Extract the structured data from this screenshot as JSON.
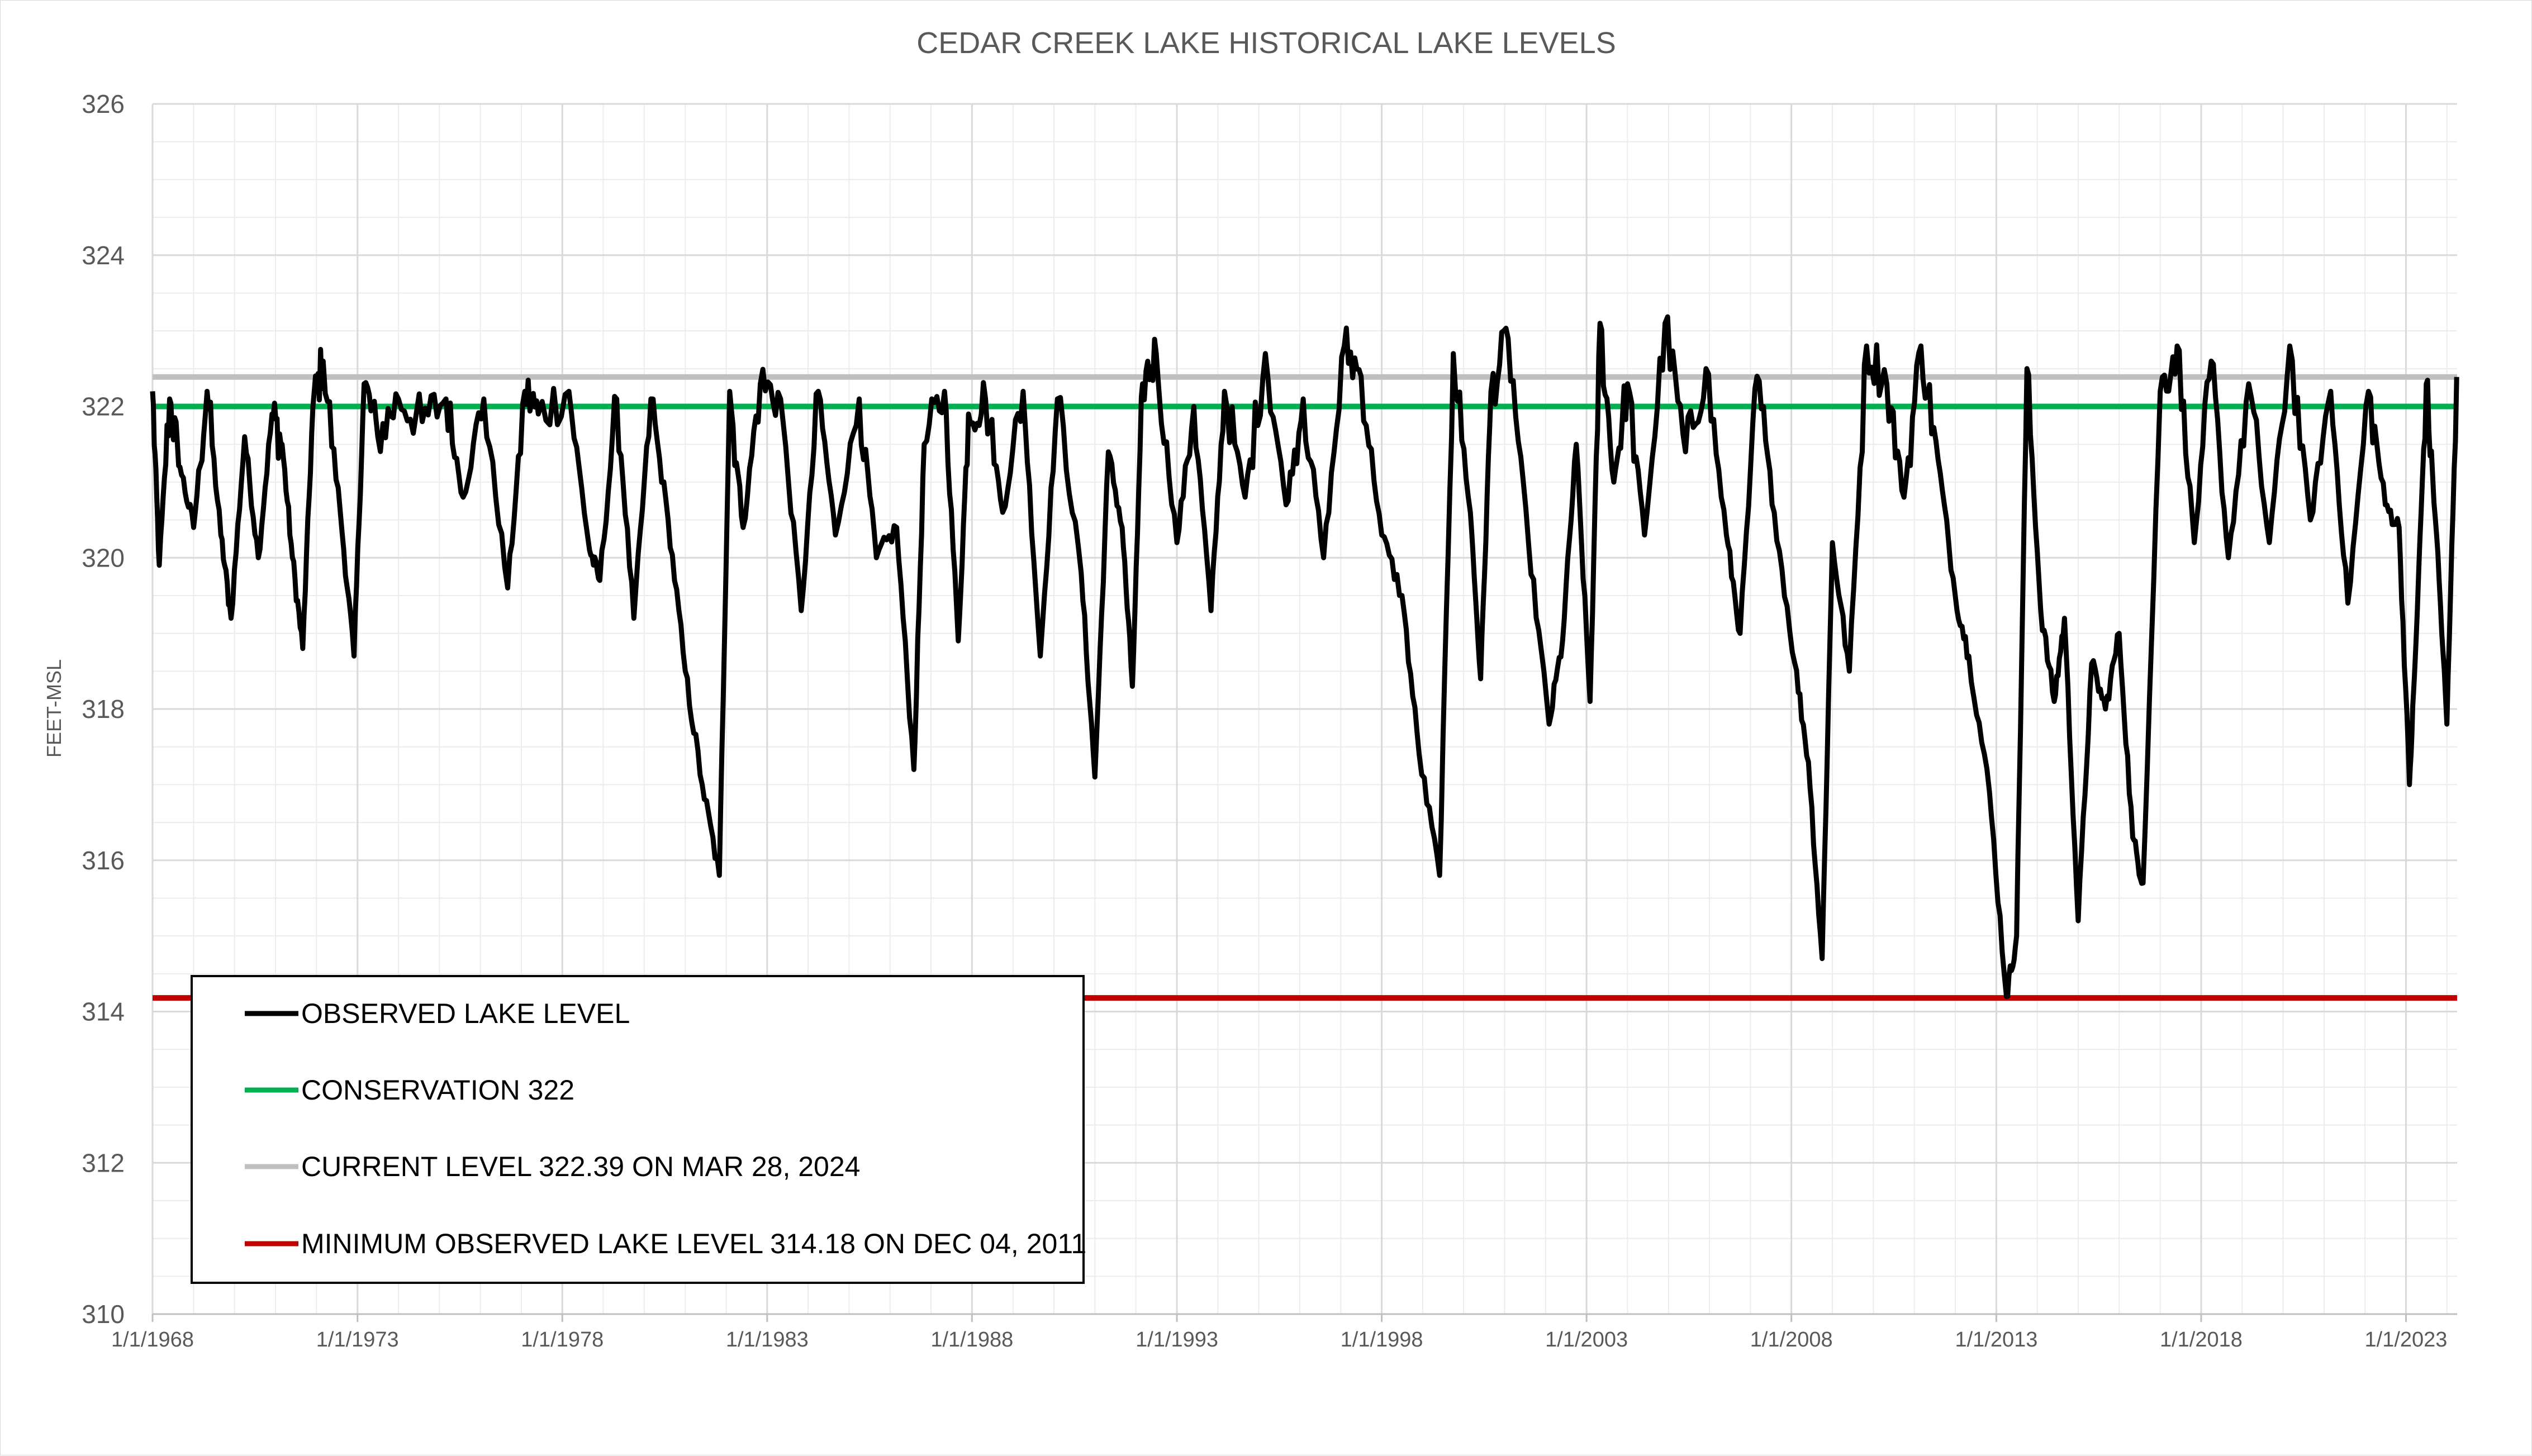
{
  "chart_data": {
    "type": "line",
    "title": "CEDAR CREEK LAKE HISTORICAL LAKE LEVELS",
    "ylabel": "FEET-MSL",
    "xlabel": "",
    "ylim": [
      310,
      326
    ],
    "yticks": [
      310,
      312,
      314,
      316,
      318,
      320,
      322,
      324,
      326
    ],
    "xlim": [
      "1968-01-01",
      "2024-04-01"
    ],
    "xtick_labels": [
      "1/1/1968",
      "1/1/1973",
      "1/1/1978",
      "1/1/1983",
      "1/1/1988",
      "1/1/1993",
      "1/1/1998",
      "1/1/2003",
      "1/1/2008",
      "1/1/2013",
      "1/1/2018",
      "1/1/2023"
    ],
    "xticks": [
      "1968-01-01",
      "1973-01-01",
      "1978-01-01",
      "1983-01-01",
      "1988-01-01",
      "1993-01-01",
      "1998-01-01",
      "2003-01-01",
      "2008-01-01",
      "2013-01-01",
      "2018-01-01",
      "2023-01-01"
    ],
    "grid": true,
    "legend_position": "bottom-left",
    "series": [
      {
        "name": "OBSERVED LAKE LEVEL",
        "color": "#000000",
        "points": [
          [
            "1968-01-01",
            322.2
          ],
          [
            "1968-03-01",
            319.9
          ],
          [
            "1968-06-01",
            322.1
          ],
          [
            "1968-09-01",
            321.2
          ],
          [
            "1969-01-01",
            320.4
          ],
          [
            "1969-05-01",
            322.2
          ],
          [
            "1969-09-01",
            320.3
          ],
          [
            "1969-12-01",
            319.2
          ],
          [
            "1970-04-01",
            321.6
          ],
          [
            "1970-08-01",
            320.0
          ],
          [
            "1970-12-01",
            321.9
          ],
          [
            "1971-03-01",
            321.5
          ],
          [
            "1971-06-01",
            320.0
          ],
          [
            "1971-09-01",
            318.8
          ],
          [
            "1971-12-01",
            322.0
          ],
          [
            "1972-03-01",
            322.6
          ],
          [
            "1972-08-01",
            320.6
          ],
          [
            "1972-12-01",
            318.7
          ],
          [
            "1973-03-01",
            322.3
          ],
          [
            "1973-07-01",
            321.6
          ],
          [
            "1974-01-01",
            322.1
          ],
          [
            "1974-08-01",
            321.8
          ],
          [
            "1975-03-01",
            322.1
          ],
          [
            "1975-08-01",
            320.8
          ],
          [
            "1976-02-01",
            322.1
          ],
          [
            "1976-09-01",
            319.6
          ],
          [
            "1977-02-01",
            322.2
          ],
          [
            "1977-06-01",
            321.9
          ],
          [
            "1978-03-01",
            322.2
          ],
          [
            "1978-09-01",
            320.1
          ],
          [
            "1978-12-01",
            319.7
          ],
          [
            "1979-05-01",
            322.1
          ],
          [
            "1979-10-01",
            319.2
          ],
          [
            "1980-03-01",
            322.1
          ],
          [
            "1980-08-01",
            320.5
          ],
          [
            "1981-01-01",
            318.5
          ],
          [
            "1981-06-01",
            317.0
          ],
          [
            "1981-11-01",
            315.8
          ],
          [
            "1982-02-01",
            322.2
          ],
          [
            "1982-06-01",
            320.4
          ],
          [
            "1982-11-01",
            322.3
          ],
          [
            "1983-05-01",
            322.1
          ],
          [
            "1983-11-01",
            319.3
          ],
          [
            "1984-04-01",
            322.2
          ],
          [
            "1984-09-01",
            320.3
          ],
          [
            "1985-04-01",
            322.1
          ],
          [
            "1985-09-01",
            320.0
          ],
          [
            "1986-03-01",
            320.4
          ],
          [
            "1986-08-01",
            317.2
          ],
          [
            "1986-11-01",
            321.5
          ],
          [
            "1987-05-01",
            322.2
          ],
          [
            "1987-09-01",
            318.9
          ],
          [
            "1987-12-01",
            321.9
          ],
          [
            "1988-05-01",
            322.1
          ],
          [
            "1988-10-01",
            320.6
          ],
          [
            "1989-04-01",
            322.2
          ],
          [
            "1989-09-01",
            318.7
          ],
          [
            "1990-02-01",
            322.1
          ],
          [
            "1990-09-01",
            319.8
          ],
          [
            "1991-01-01",
            317.1
          ],
          [
            "1991-05-01",
            321.4
          ],
          [
            "1991-09-01",
            320.4
          ],
          [
            "1991-12-01",
            318.3
          ],
          [
            "1992-03-01",
            322.3
          ],
          [
            "1992-07-01",
            322.7
          ],
          [
            "1993-01-01",
            320.2
          ],
          [
            "1993-06-01",
            322.0
          ],
          [
            "1993-11-01",
            319.3
          ],
          [
            "1994-03-01",
            322.2
          ],
          [
            "1994-09-01",
            320.8
          ],
          [
            "1995-03-01",
            322.7
          ],
          [
            "1995-09-01",
            320.7
          ],
          [
            "1996-02-01",
            322.1
          ],
          [
            "1996-08-01",
            320.0
          ],
          [
            "1997-02-01",
            322.8
          ],
          [
            "1997-07-01",
            322.4
          ],
          [
            "1998-01-01",
            320.3
          ],
          [
            "1998-07-01",
            319.5
          ],
          [
            "1998-12-01",
            317.4
          ],
          [
            "1999-06-01",
            315.8
          ],
          [
            "1999-10-01",
            322.7
          ],
          [
            "2000-03-01",
            320.6
          ],
          [
            "2000-06-01",
            318.4
          ],
          [
            "2000-09-01",
            322.2
          ],
          [
            "2001-02-01",
            322.9
          ],
          [
            "2001-08-01",
            320.2
          ],
          [
            "2002-02-01",
            317.8
          ],
          [
            "2002-06-01",
            318.9
          ],
          [
            "2002-10-01",
            321.5
          ],
          [
            "2003-02-01",
            318.1
          ],
          [
            "2003-05-01",
            323.1
          ],
          [
            "2003-09-01",
            321.0
          ],
          [
            "2004-01-01",
            322.3
          ],
          [
            "2004-06-01",
            320.3
          ],
          [
            "2004-12-01",
            323.1
          ],
          [
            "2005-06-01",
            321.4
          ],
          [
            "2005-12-01",
            322.5
          ],
          [
            "2006-06-01",
            320.3
          ],
          [
            "2006-10-01",
            319.0
          ],
          [
            "2007-03-01",
            322.4
          ],
          [
            "2007-08-01",
            320.6
          ],
          [
            "2008-02-01",
            318.6
          ],
          [
            "2008-06-01",
            317.3
          ],
          [
            "2008-10-01",
            314.7
          ],
          [
            "2009-01-01",
            320.2
          ],
          [
            "2009-06-01",
            318.5
          ],
          [
            "2009-11-01",
            322.8
          ],
          [
            "2010-05-01",
            322.3
          ],
          [
            "2010-10-01",
            320.8
          ],
          [
            "2011-03-01",
            322.8
          ],
          [
            "2011-08-01",
            321.3
          ],
          [
            "2012-01-01",
            319.5
          ],
          [
            "2012-05-01",
            318.7
          ],
          [
            "2012-11-01",
            316.9
          ],
          [
            "2013-04-01",
            314.2
          ],
          [
            "2013-07-01",
            315.0
          ],
          [
            "2013-10-01",
            322.5
          ],
          [
            "2014-02-01",
            319.3
          ],
          [
            "2014-06-01",
            318.1
          ],
          [
            "2014-09-01",
            319.2
          ],
          [
            "2015-01-01",
            315.2
          ],
          [
            "2015-05-01",
            318.6
          ],
          [
            "2015-09-01",
            318.0
          ],
          [
            "2016-01-01",
            319.0
          ],
          [
            "2016-05-01",
            316.3
          ],
          [
            "2016-08-01",
            315.7
          ],
          [
            "2017-01-01",
            322.2
          ],
          [
            "2017-06-01",
            322.8
          ],
          [
            "2017-11-01",
            320.2
          ],
          [
            "2018-04-01",
            322.6
          ],
          [
            "2018-09-01",
            320.0
          ],
          [
            "2019-03-01",
            322.3
          ],
          [
            "2019-09-01",
            320.2
          ],
          [
            "2020-03-01",
            322.8
          ],
          [
            "2020-09-01",
            320.5
          ],
          [
            "2021-03-01",
            322.2
          ],
          [
            "2021-08-01",
            319.4
          ],
          [
            "2022-02-01",
            322.2
          ],
          [
            "2022-07-01",
            320.7
          ],
          [
            "2022-11-01",
            320.4
          ],
          [
            "2023-02-01",
            317.0
          ],
          [
            "2023-04-01",
            318.9
          ],
          [
            "2023-07-01",
            322.3
          ],
          [
            "2023-10-01",
            320.3
          ],
          [
            "2024-01-01",
            317.8
          ],
          [
            "2024-03-28",
            322.39
          ]
        ]
      },
      {
        "name": "CONSERVATION 322",
        "color": "#00b050",
        "value": 322
      },
      {
        "name": "CURRENT LEVEL 322.39 ON MAR 28, 2024",
        "color": "#bfbfbf",
        "value": 322.39
      },
      {
        "name": "MINIMUM OBSERVED LAKE LEVEL 314.18 ON DEC 04, 2011",
        "color": "#c00000",
        "value": 314.18
      }
    ]
  }
}
